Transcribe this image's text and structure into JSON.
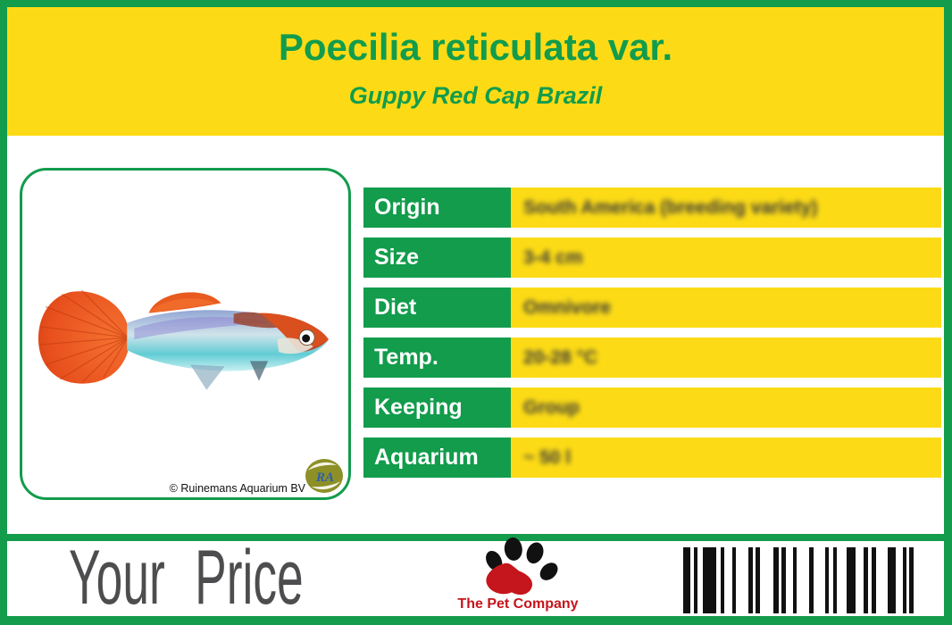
{
  "colors": {
    "green": "#129C4C",
    "yellow": "#FCDB16",
    "price_gray": "#4D4D4F",
    "brand_red": "#C4161C",
    "bar_black": "#111111"
  },
  "header": {
    "title": "Poecilia reticulata var.",
    "subtitle": "Guppy Red Cap Brazil"
  },
  "photo": {
    "copyright": "© Ruinemans Aquarium BV",
    "supplier_logo_text": "RA"
  },
  "specs": {
    "rows": [
      {
        "label": "Origin",
        "value": "South America (breeding variety)"
      },
      {
        "label": "Size",
        "value": "3-4 cm"
      },
      {
        "label": "Diet",
        "value": "Omnivore"
      },
      {
        "label": "Temp.",
        "value": "20-28 °C"
      },
      {
        "label": "Keeping",
        "value": "Group"
      },
      {
        "label": "Aquarium",
        "value": "~ 50 l"
      }
    ]
  },
  "footer": {
    "price_label": "Your Price",
    "brand_name": "The Pet Company"
  },
  "barcode": {
    "bars": [
      [
        8,
        4
      ],
      [
        4,
        6
      ],
      [
        15,
        5
      ],
      [
        4,
        9
      ],
      [
        4,
        14
      ],
      [
        5,
        3
      ],
      [
        5,
        15
      ],
      [
        6,
        3
      ],
      [
        5,
        8
      ],
      [
        4,
        14
      ],
      [
        5,
        13
      ],
      [
        4,
        5
      ],
      [
        4,
        11
      ],
      [
        10,
        9
      ],
      [
        5,
        4
      ],
      [
        5,
        13
      ],
      [
        9,
        8
      ],
      [
        4,
        3
      ],
      [
        5,
        0
      ]
    ]
  }
}
